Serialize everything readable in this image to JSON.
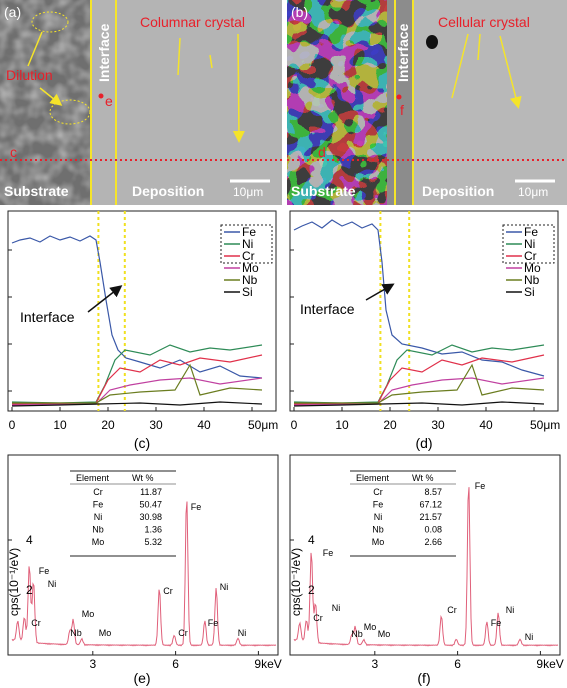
{
  "sem_a": {
    "label": "(a)",
    "interface": "Interface",
    "crystal": "Columnar crystal",
    "dilution": "Dilution",
    "point": "e",
    "line": "c",
    "substrate": "Substrate",
    "deposition": "Deposition",
    "scale": "10μm"
  },
  "sem_b": {
    "label": "(b)",
    "interface": "Interface",
    "crystal": "Cellular crystal",
    "point": "f",
    "line": "d",
    "substrate": "Substrate",
    "deposition": "Deposition",
    "scale": "10μm"
  },
  "profile_c": {
    "label": "(c)",
    "interface": "Interface",
    "legend": [
      "Fe",
      "Ni",
      "Cr",
      "Mo",
      "Nb",
      "Si"
    ],
    "xticks": [
      "0",
      "10",
      "20",
      "30",
      "40",
      "50μm"
    ]
  },
  "profile_d": {
    "label": "(d)",
    "interface": "Interface",
    "legend": [
      "Fe",
      "Ni",
      "Cr",
      "Mo",
      "Nb",
      "Si"
    ],
    "xticks": [
      "0",
      "10",
      "20",
      "30",
      "40",
      "50μm"
    ]
  },
  "spectrum_e": {
    "label": "(e)",
    "ylabel": "cps(10⁻¹/eV)",
    "yticks": [
      "4",
      "2"
    ],
    "xticks": [
      "3",
      "6",
      "9keV"
    ],
    "peaks": [
      "Cr",
      "Fe",
      "Ni",
      "Nb",
      "Mo",
      "Mo",
      "Cr",
      "Cr",
      "Fe",
      "Fe",
      "Ni",
      "Ni"
    ],
    "table": {
      "header": [
        "Element",
        "Wt %"
      ],
      "rows": [
        [
          "Cr",
          "11.87"
        ],
        [
          "Fe",
          "50.47"
        ],
        [
          "Ni",
          "30.98"
        ],
        [
          "Nb",
          "1.36"
        ],
        [
          "Mo",
          "5.32"
        ]
      ]
    }
  },
  "spectrum_f": {
    "label": "(f)",
    "ylabel": "cps(10⁻¹/eV)",
    "yticks": [
      "4",
      "2"
    ],
    "xticks": [
      "3",
      "6",
      "9keV"
    ],
    "peaks": [
      "Cr",
      "Fe",
      "Ni",
      "Nb",
      "Mo",
      "Mo",
      "Cr",
      "Fe",
      "Fe",
      "Ni",
      "Ni"
    ],
    "table": {
      "header": [
        "Element",
        "Wt %"
      ],
      "rows": [
        [
          "Cr",
          "8.57"
        ],
        [
          "Fe",
          "67.12"
        ],
        [
          "Ni",
          "21.57"
        ],
        [
          "Nb",
          "0.08"
        ],
        [
          "Mo",
          "2.66"
        ]
      ]
    }
  }
}
